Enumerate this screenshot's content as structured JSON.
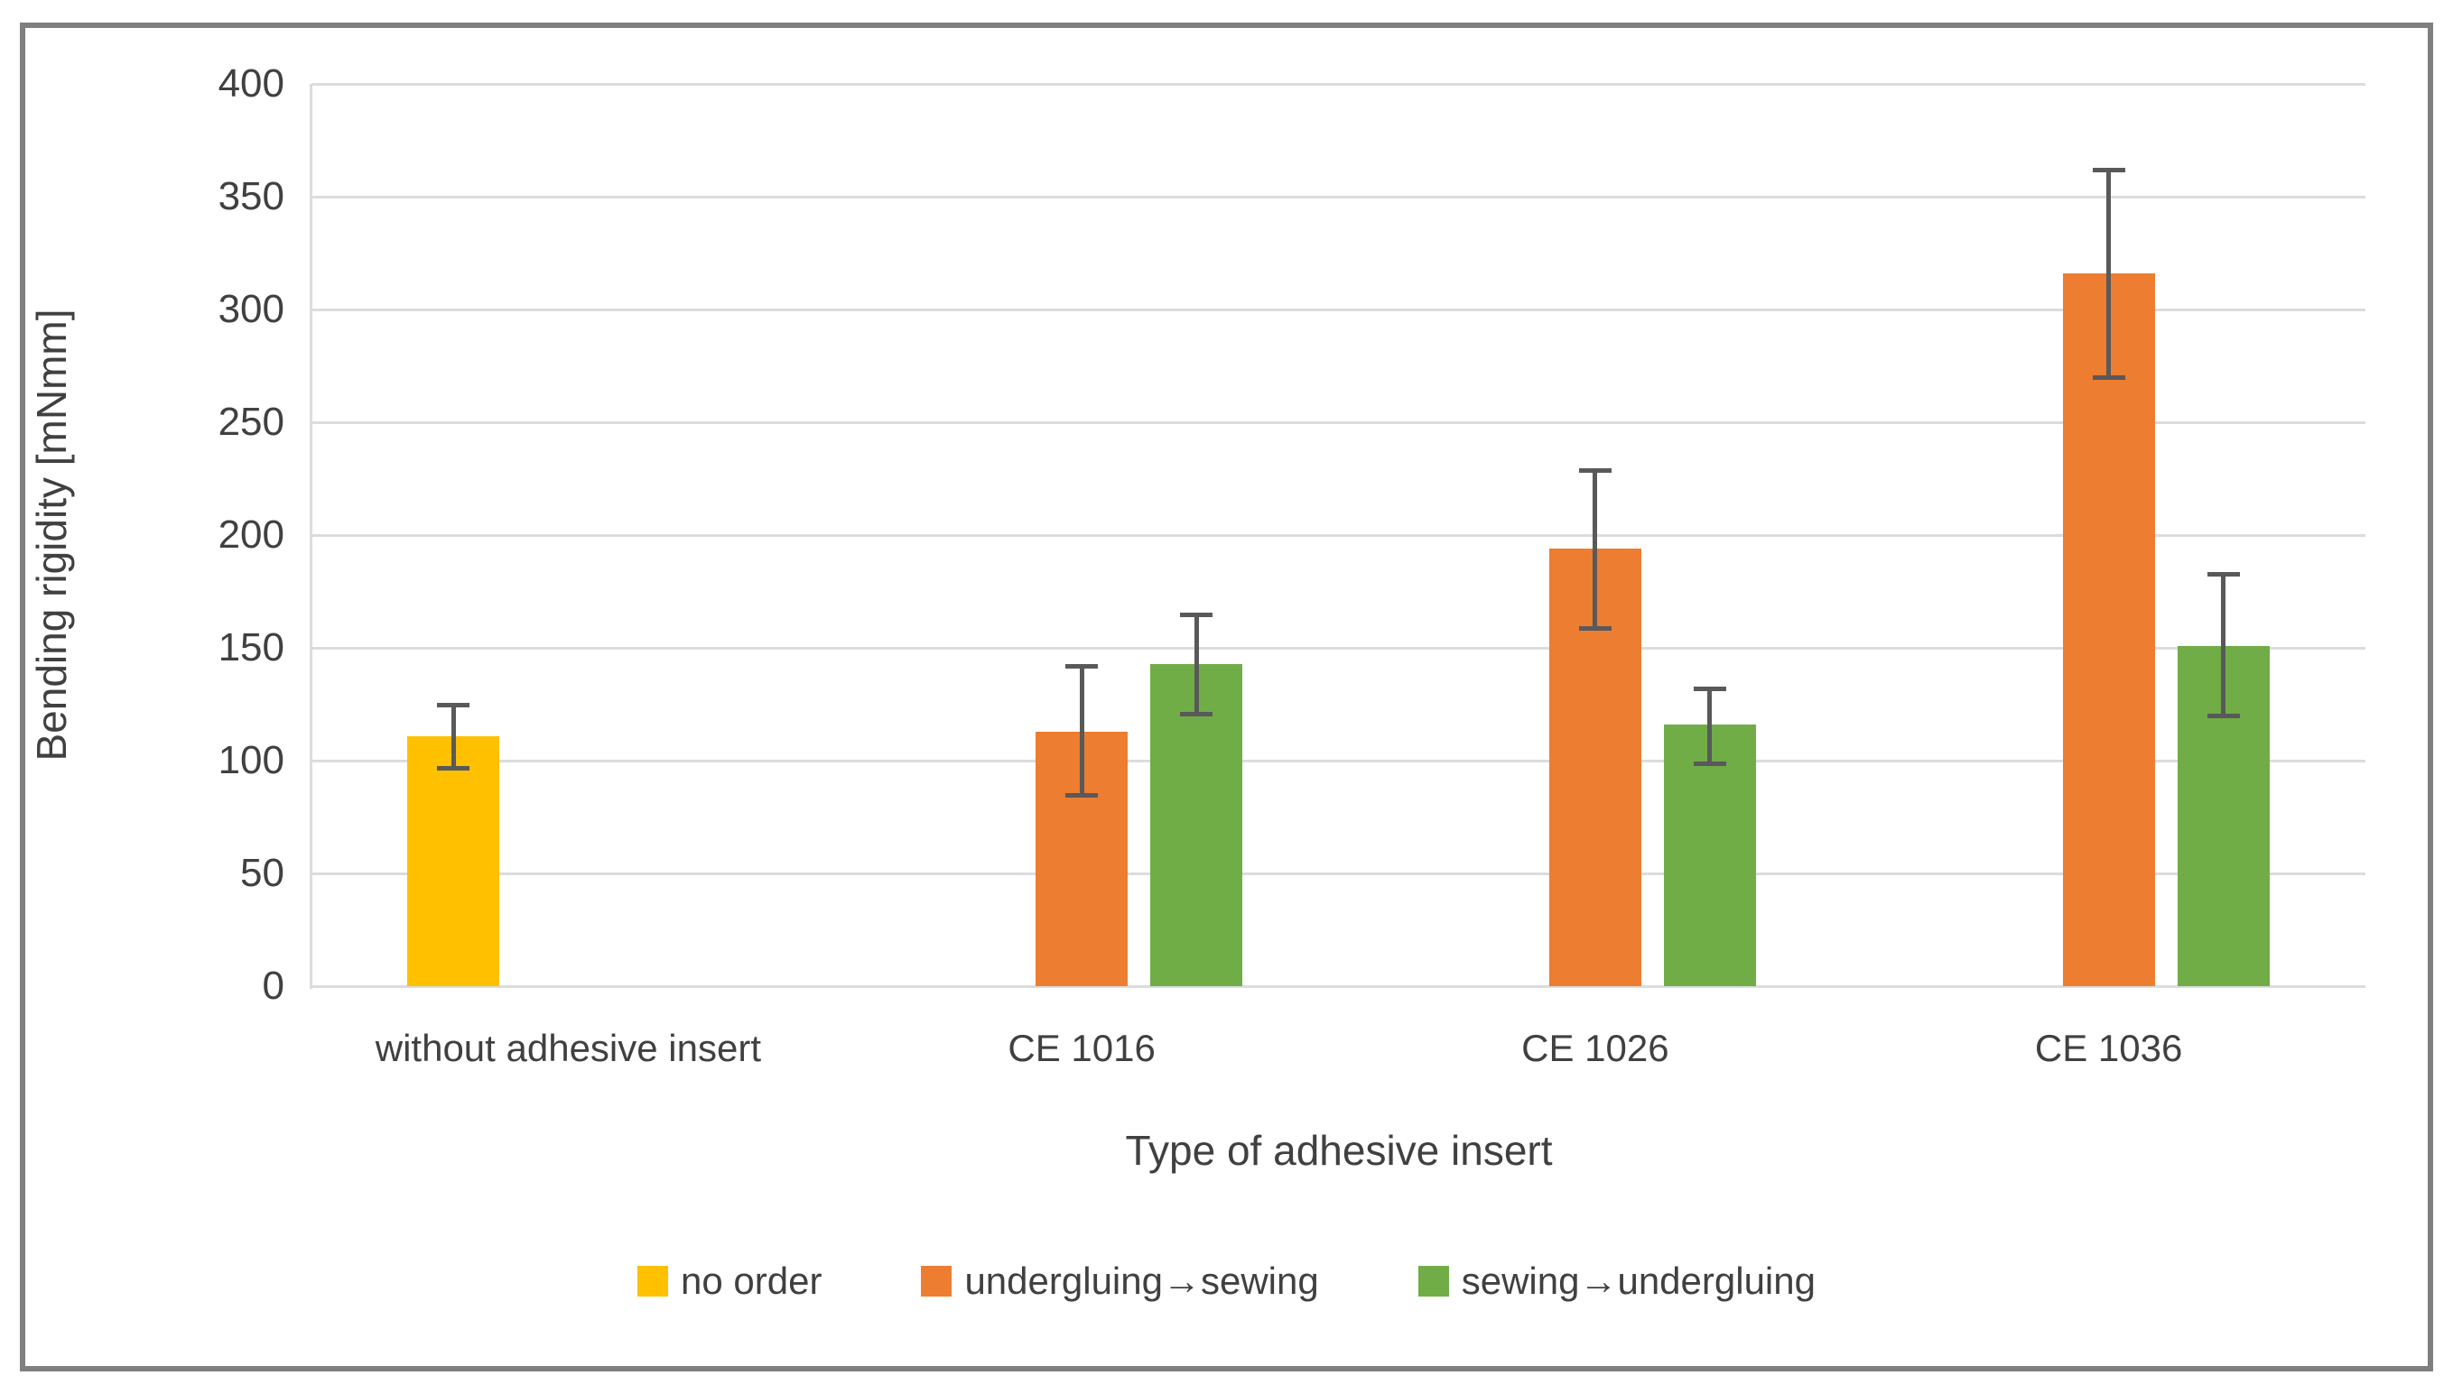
{
  "colors": {
    "no_order": "#FFC000",
    "undergluing_sewing": "#ED7D31",
    "sewing_undergluing": "#70AD47",
    "gridline": "#DCDCDC",
    "error_bar": "#595959",
    "axis_text": "#404040",
    "frame_border": "#7F7F7F"
  },
  "chart_data": {
    "type": "bar",
    "title": "",
    "xlabel": "Type of adhesive insert",
    "ylabel": "Bending rigidity [mNmm]",
    "ylim": [
      0,
      400
    ],
    "ytick_step": 50,
    "ytick_labels": [
      "0",
      "50",
      "100",
      "150",
      "200",
      "250",
      "300",
      "350",
      "400"
    ],
    "grid": "horizontal",
    "legend_position": "bottom",
    "error_bars": true,
    "categories": [
      "without adhesive insert",
      "CE 1016",
      "CE 1026",
      "CE 1036"
    ],
    "series": [
      {
        "name": "no order",
        "color": "#FFC000",
        "values": [
          111,
          null,
          null,
          null
        ],
        "err_low": [
          97,
          null,
          null,
          null
        ],
        "err_high": [
          125,
          null,
          null,
          null
        ]
      },
      {
        "name": "undergluing→sewing",
        "color": "#ED7D31",
        "values": [
          null,
          113,
          194,
          316
        ],
        "err_low": [
          null,
          85,
          159,
          270
        ],
        "err_high": [
          null,
          142,
          229,
          362
        ]
      },
      {
        "name": "sewing→undergluing",
        "color": "#70AD47",
        "values": [
          null,
          143,
          116,
          151
        ],
        "err_low": [
          null,
          121,
          99,
          120
        ],
        "err_high": [
          null,
          165,
          132,
          183
        ]
      }
    ]
  }
}
